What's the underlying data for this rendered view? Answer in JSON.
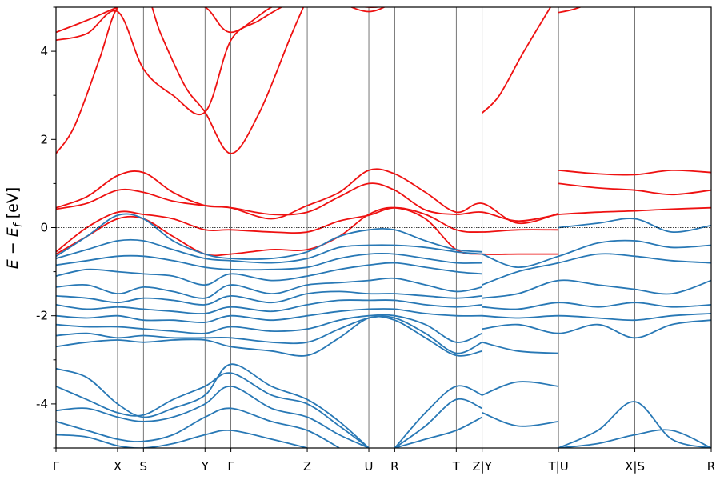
{
  "chart_data": {
    "type": "line",
    "title": "",
    "xlabel": "",
    "ylabel": "E − E_f [eV]",
    "ylabel_parts": {
      "main": "E − E",
      "sub": "f",
      "unit": " [eV]"
    },
    "ylim": [
      -5,
      5
    ],
    "yticks": [
      {
        "value": 4,
        "label": "4"
      },
      {
        "value": 2,
        "label": "2"
      },
      {
        "value": 0,
        "label": "0"
      },
      {
        "value": -2,
        "label": "-2"
      },
      {
        "value": -4,
        "label": "-4"
      }
    ],
    "xticks": [
      {
        "value": 0.0,
        "label": "Γ"
      },
      {
        "value": 1.0,
        "label": "X"
      },
      {
        "value": 1.42,
        "label": "S"
      },
      {
        "value": 2.42,
        "label": "Y"
      },
      {
        "value": 2.84,
        "label": "Γ"
      },
      {
        "value": 4.08,
        "label": "Z"
      },
      {
        "value": 5.08,
        "label": "U"
      },
      {
        "value": 5.5,
        "label": "R"
      },
      {
        "value": 6.5,
        "label": "T"
      },
      {
        "value": 6.92,
        "label": "Z|Y"
      },
      {
        "value": 8.16,
        "label": "T|U"
      },
      {
        "value": 9.4,
        "label": "X|S"
      },
      {
        "value": 10.64,
        "label": "R"
      }
    ],
    "xlim": [
      0,
      10.64
    ],
    "fermi_level": 0,
    "grid": "vertical lines at high-symmetry points",
    "colors": {
      "valence": "#2878b5",
      "conduction": "#ee1111",
      "vline": "#555555"
    },
    "series": [
      {
        "band": "conduction",
        "x": [
          0,
          0.5,
          1.0,
          1.42,
          1.9,
          2.42,
          2.84,
          3.5,
          4.08,
          4.6,
          5.08,
          5.5,
          6.0,
          6.5,
          6.92
        ],
        "y": [
          4.43,
          4.7,
          5.0,
          5.2,
          5.1,
          5.0,
          4.43,
          5.0,
          5.3,
          5.1,
          4.9,
          5.1,
          5.3,
          5.2,
          5.1
        ]
      },
      {
        "band": "conduction",
        "x": [
          0,
          0.5,
          1.0,
          1.42,
          1.9,
          2.42,
          2.84,
          3.3,
          3.8,
          4.08,
          5.08,
          5.5,
          6.0,
          6.5,
          6.92
        ],
        "y": [
          4.25,
          4.4,
          4.9,
          3.6,
          3.0,
          2.62,
          4.25,
          4.7,
          5.1,
          5.2,
          5.0,
          5.1,
          5.2,
          5.2,
          5.1
        ]
      },
      {
        "band": "conduction",
        "x": [
          0,
          0.3,
          0.7,
          1.0,
          1.42,
          1.7,
          2.1,
          2.42,
          2.84,
          3.3,
          3.8,
          4.08
        ],
        "y": [
          1.68,
          2.3,
          3.8,
          5.0,
          5.4,
          4.4,
          3.2,
          2.62,
          1.68,
          2.6,
          4.3,
          5.2
        ]
      },
      {
        "band": "conduction",
        "x": [
          6.92,
          7.2,
          7.6,
          8.16
        ],
        "y": [
          2.6,
          3.0,
          4.0,
          5.3
        ]
      },
      {
        "band": "conduction",
        "x": [
          8.16,
          8.4,
          8.7
        ],
        "y": [
          4.88,
          4.95,
          5.1
        ]
      },
      {
        "band": "conduction",
        "x": [
          0,
          0.5,
          1.0,
          1.42,
          1.9,
          2.42,
          2.84,
          3.5,
          4.08,
          4.6,
          5.08,
          5.5,
          6.0,
          6.5,
          6.92,
          7.5,
          8.16
        ],
        "y": [
          0.45,
          0.7,
          1.18,
          1.25,
          0.8,
          0.5,
          0.45,
          0.2,
          0.5,
          0.8,
          1.3,
          1.22,
          0.8,
          0.35,
          0.55,
          0.1,
          0.32
        ]
      },
      {
        "band": "conduction",
        "x": [
          0,
          0.5,
          1.0,
          1.42,
          1.9,
          2.42,
          2.84,
          3.5,
          4.08,
          4.6,
          5.08,
          5.5,
          6.0,
          6.5,
          6.92,
          7.5,
          8.16
        ],
        "y": [
          0.42,
          0.55,
          0.85,
          0.8,
          0.6,
          0.5,
          0.45,
          0.3,
          0.35,
          0.7,
          1.0,
          0.85,
          0.4,
          0.3,
          0.35,
          0.15,
          0.3
        ]
      },
      {
        "band": "conduction",
        "x": [
          0,
          0.5,
          1.0,
          1.42,
          1.9,
          2.42,
          2.84,
          3.5,
          4.08,
          4.6,
          5.08,
          5.5,
          6.0,
          6.5,
          6.92,
          7.5,
          8.16
        ],
        "y": [
          -0.55,
          0.0,
          0.35,
          0.3,
          0.2,
          -0.05,
          -0.05,
          -0.1,
          -0.1,
          0.15,
          0.28,
          0.45,
          0.3,
          -0.05,
          -0.1,
          -0.05,
          -0.05
        ]
      },
      {
        "band": "conduction",
        "x": [
          0,
          0.5,
          1.0,
          1.42,
          1.9,
          2.42,
          2.84,
          3.5,
          4.08,
          4.6,
          5.08,
          5.5,
          6.0,
          6.5,
          6.92,
          7.5,
          8.16
        ],
        "y": [
          -0.6,
          -0.2,
          0.2,
          0.2,
          -0.2,
          -0.6,
          -0.6,
          -0.5,
          -0.5,
          -0.2,
          0.3,
          0.45,
          0.2,
          -0.5,
          -0.6,
          -0.6,
          -0.6
        ]
      },
      {
        "band": "conduction",
        "x": [
          8.16,
          8.8,
          9.4,
          10.0,
          10.64
        ],
        "y": [
          1.3,
          1.22,
          1.2,
          1.3,
          1.25
        ]
      },
      {
        "band": "conduction",
        "x": [
          8.16,
          8.8,
          9.4,
          10.0,
          10.64
        ],
        "y": [
          1.0,
          0.9,
          0.85,
          0.75,
          0.85
        ]
      },
      {
        "band": "conduction",
        "x": [
          8.16,
          8.8,
          9.4,
          10.0,
          10.64
        ],
        "y": [
          0.3,
          0.35,
          0.38,
          0.42,
          0.45
        ]
      },
      {
        "band": "valence",
        "x": [
          0,
          0.5,
          1.0,
          1.42,
          1.9,
          2.42,
          2.84,
          3.5,
          4.08,
          4.6,
          5.08,
          5.5,
          6.0,
          6.5,
          6.92
        ],
        "y": [
          -0.65,
          -0.2,
          0.28,
          0.2,
          -0.3,
          -0.6,
          -0.7,
          -0.7,
          -0.55,
          -0.2,
          -0.05,
          -0.05,
          -0.3,
          -0.5,
          -0.55
        ]
      },
      {
        "band": "valence",
        "x": [
          0,
          0.5,
          1.0,
          1.42,
          1.9,
          2.42,
          2.84,
          3.5,
          4.08,
          4.6,
          5.08,
          5.5,
          6.0,
          6.5,
          6.92
        ],
        "y": [
          -0.7,
          -0.5,
          -0.3,
          -0.3,
          -0.5,
          -0.7,
          -0.75,
          -0.8,
          -0.7,
          -0.45,
          -0.4,
          -0.4,
          -0.45,
          -0.55,
          -0.6
        ]
      },
      {
        "band": "valence",
        "x": [
          0,
          0.5,
          1.0,
          1.42,
          1.9,
          2.42,
          2.84,
          3.5,
          4.08,
          4.6,
          5.08,
          5.5,
          6.0,
          6.5,
          6.92
        ],
        "y": [
          -0.85,
          -0.75,
          -0.65,
          -0.65,
          -0.75,
          -0.9,
          -0.95,
          -0.95,
          -0.9,
          -0.7,
          -0.6,
          -0.6,
          -0.7,
          -0.8,
          -0.8
        ]
      },
      {
        "band": "valence",
        "x": [
          0,
          0.5,
          1.0,
          1.42,
          1.9,
          2.42,
          2.84,
          3.5,
          4.08,
          4.6,
          5.08,
          5.5,
          6.0,
          6.5,
          6.92
        ],
        "y": [
          -1.1,
          -0.95,
          -1.0,
          -1.05,
          -1.1,
          -1.3,
          -1.05,
          -1.2,
          -1.1,
          -0.95,
          -0.85,
          -0.8,
          -0.9,
          -1.0,
          -1.05
        ]
      },
      {
        "band": "valence",
        "x": [
          0,
          0.5,
          1.0,
          1.42,
          1.9,
          2.42,
          2.84,
          3.5,
          4.08,
          4.6,
          5.08,
          5.5,
          6.0,
          6.5,
          6.92
        ],
        "y": [
          -1.35,
          -1.3,
          -1.5,
          -1.35,
          -1.45,
          -1.6,
          -1.3,
          -1.5,
          -1.3,
          -1.25,
          -1.2,
          -1.15,
          -1.3,
          -1.45,
          -1.35
        ]
      },
      {
        "band": "valence",
        "x": [
          0,
          0.5,
          1.0,
          1.42,
          1.9,
          2.42,
          2.84,
          3.5,
          4.08,
          4.6,
          5.08,
          5.5,
          6.0,
          6.5,
          6.92
        ],
        "y": [
          -1.55,
          -1.6,
          -1.7,
          -1.6,
          -1.65,
          -1.75,
          -1.55,
          -1.7,
          -1.5,
          -1.45,
          -1.5,
          -1.5,
          -1.55,
          -1.6,
          -1.55
        ]
      },
      {
        "band": "valence",
        "x": [
          0,
          0.5,
          1.0,
          1.42,
          1.9,
          2.42,
          2.84,
          3.5,
          4.08,
          4.6,
          5.08,
          5.5,
          6.0,
          6.5,
          6.92
        ],
        "y": [
          -1.75,
          -1.85,
          -1.8,
          -1.85,
          -1.9,
          -1.95,
          -1.8,
          -1.9,
          -1.75,
          -1.65,
          -1.65,
          -1.65,
          -1.75,
          -1.8,
          -1.75
        ]
      },
      {
        "band": "valence",
        "x": [
          0,
          0.5,
          1.0,
          1.42,
          1.9,
          2.42,
          2.84,
          3.5,
          4.08,
          4.6,
          5.08,
          5.5,
          6.0,
          6.5,
          6.92
        ],
        "y": [
          -2.0,
          -2.05,
          -2.0,
          -2.1,
          -2.1,
          -2.15,
          -2.0,
          -2.1,
          -2.0,
          -1.9,
          -1.85,
          -1.85,
          -1.95,
          -2.0,
          -2.0
        ]
      },
      {
        "band": "valence",
        "x": [
          0,
          0.5,
          1.0,
          1.42,
          1.9,
          2.42,
          2.84,
          3.5,
          4.08,
          4.6,
          5.08,
          5.5,
          6.0,
          6.5,
          6.92
        ],
        "y": [
          -2.2,
          -2.25,
          -2.25,
          -2.3,
          -2.35,
          -2.4,
          -2.25,
          -2.35,
          -2.3,
          -2.1,
          -2.0,
          -2.0,
          -2.2,
          -2.6,
          -2.4
        ]
      },
      {
        "band": "valence",
        "x": [
          0,
          0.5,
          1.0,
          1.42,
          1.9,
          2.42,
          2.84,
          3.5,
          4.08,
          4.6,
          5.08,
          5.5,
          6.0,
          6.5,
          6.92
        ],
        "y": [
          -2.45,
          -2.4,
          -2.5,
          -2.45,
          -2.5,
          -2.5,
          -2.5,
          -2.6,
          -2.6,
          -2.3,
          -2.05,
          -2.05,
          -2.4,
          -2.85,
          -2.6
        ]
      },
      {
        "band": "valence",
        "x": [
          0,
          0.5,
          1.0,
          1.42,
          1.9,
          2.42,
          2.84,
          3.5,
          4.08,
          4.6,
          5.08,
          5.5,
          6.0,
          6.5,
          6.92
        ],
        "y": [
          -2.7,
          -2.6,
          -2.55,
          -2.6,
          -2.55,
          -2.55,
          -2.7,
          -2.8,
          -2.9,
          -2.5,
          -2.05,
          -2.1,
          -2.5,
          -2.9,
          -2.8
        ]
      },
      {
        "band": "valence",
        "x": [
          0,
          0.5,
          1.0,
          1.42,
          1.9,
          2.42,
          2.84,
          3.5,
          4.08,
          4.6,
          5.08
        ],
        "y": [
          -3.2,
          -3.4,
          -4.0,
          -4.3,
          -4.1,
          -3.8,
          -3.1,
          -3.6,
          -3.9,
          -4.4,
          -5.0
        ]
      },
      {
        "band": "valence",
        "x": [
          0,
          0.5,
          1.0,
          1.42,
          1.9,
          2.42,
          2.84,
          3.5,
          4.08,
          4.6,
          5.08
        ],
        "y": [
          -3.6,
          -3.9,
          -4.2,
          -4.25,
          -3.9,
          -3.6,
          -3.3,
          -3.8,
          -4.0,
          -4.5,
          -5.0
        ]
      },
      {
        "band": "valence",
        "x": [
          0,
          0.5,
          1.0,
          1.42,
          1.9,
          2.42,
          2.84,
          3.5,
          4.08,
          4.6,
          5.08
        ],
        "y": [
          -4.15,
          -4.1,
          -4.3,
          -4.4,
          -4.3,
          -4.0,
          -3.6,
          -4.1,
          -4.3,
          -4.7,
          -5.0
        ]
      },
      {
        "band": "valence",
        "x": [
          0,
          0.5,
          1.0,
          1.42,
          1.9,
          2.42,
          2.84,
          3.5,
          4.08,
          4.6
        ],
        "y": [
          -4.4,
          -4.6,
          -4.8,
          -4.85,
          -4.7,
          -4.3,
          -4.1,
          -4.4,
          -4.6,
          -5.0
        ]
      },
      {
        "band": "valence",
        "x": [
          0,
          0.5,
          1.0,
          1.42,
          1.9,
          2.42,
          2.84,
          3.5,
          4.08
        ],
        "y": [
          -4.7,
          -4.75,
          -4.95,
          -5.0,
          -4.9,
          -4.7,
          -4.6,
          -4.8,
          -5.0
        ]
      },
      {
        "band": "valence",
        "x": [
          5.5,
          6.0,
          6.5,
          6.92
        ],
        "y": [
          -5.0,
          -4.2,
          -3.6,
          -3.8
        ]
      },
      {
        "band": "valence",
        "x": [
          5.5,
          6.0,
          6.5,
          6.92
        ],
        "y": [
          -5.0,
          -4.5,
          -3.9,
          -4.1
        ]
      },
      {
        "band": "valence",
        "x": [
          5.5,
          6.0,
          6.5,
          6.92
        ],
        "y": [
          -5.0,
          -4.8,
          -4.6,
          -4.3
        ]
      },
      {
        "band": "valence",
        "x": [
          8.16,
          8.8,
          9.4,
          10.0,
          10.64
        ],
        "y": [
          0.0,
          0.1,
          0.2,
          -0.1,
          0.05
        ]
      },
      {
        "band": "valence",
        "x": [
          6.92,
          7.5,
          8.16,
          8.8,
          9.4,
          10.0,
          10.64
        ],
        "y": [
          -0.6,
          -0.9,
          -0.65,
          -0.35,
          -0.3,
          -0.45,
          -0.4
        ]
      },
      {
        "band": "valence",
        "x": [
          6.92,
          7.5,
          8.16,
          8.8,
          9.4,
          10.0,
          10.64
        ],
        "y": [
          -1.3,
          -1.0,
          -0.8,
          -0.6,
          -0.65,
          -0.75,
          -0.8
        ]
      },
      {
        "band": "valence",
        "x": [
          6.92,
          7.5,
          8.16,
          8.8,
          9.4,
          10.0,
          10.64
        ],
        "y": [
          -1.6,
          -1.5,
          -1.2,
          -1.3,
          -1.4,
          -1.5,
          -1.2
        ]
      },
      {
        "band": "valence",
        "x": [
          6.92,
          7.5,
          8.16,
          8.8,
          9.4,
          10.0,
          10.64
        ],
        "y": [
          -1.8,
          -1.85,
          -1.7,
          -1.8,
          -1.7,
          -1.8,
          -1.75
        ]
      },
      {
        "band": "valence",
        "x": [
          6.92,
          7.5,
          8.16,
          8.8,
          9.4,
          10.0,
          10.64
        ],
        "y": [
          -2.0,
          -2.05,
          -2.0,
          -2.05,
          -2.1,
          -2.0,
          -1.95
        ]
      },
      {
        "band": "valence",
        "x": [
          6.92,
          7.5,
          8.16,
          8.8,
          9.4,
          10.0,
          10.64
        ],
        "y": [
          -2.3,
          -2.2,
          -2.4,
          -2.2,
          -2.5,
          -2.2,
          -2.1
        ]
      },
      {
        "band": "valence",
        "x": [
          6.92,
          7.5,
          8.16
        ],
        "y": [
          -2.6,
          -2.8,
          -2.85
        ]
      },
      {
        "band": "valence",
        "x": [
          6.92,
          7.5,
          8.16
        ],
        "y": [
          -3.8,
          -3.5,
          -3.6
        ]
      },
      {
        "band": "valence",
        "x": [
          6.92,
          7.5,
          8.16
        ],
        "y": [
          -4.2,
          -4.5,
          -4.4
        ]
      },
      {
        "band": "valence",
        "x": [
          8.16,
          8.8,
          9.4,
          10.0,
          10.64
        ],
        "y": [
          -5.0,
          -4.6,
          -3.95,
          -4.8,
          -5.0
        ]
      },
      {
        "band": "valence",
        "x": [
          8.16,
          8.8,
          9.4,
          10.0,
          10.64
        ],
        "y": [
          -5.0,
          -4.9,
          -4.7,
          -4.6,
          -5.0
        ]
      }
    ]
  }
}
